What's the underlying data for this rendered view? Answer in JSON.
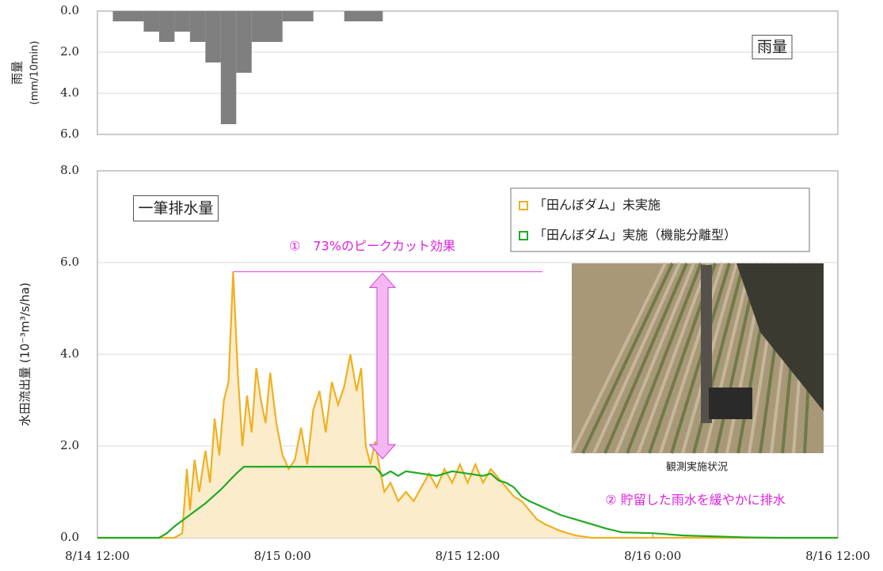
{
  "chart_data": [
    {
      "type": "histogram",
      "ylabel": [
        "雨量",
        "(mm/10min)"
      ],
      "panel_label": "雨量",
      "xlim": [
        0,
        48
      ],
      "ylim": [
        0,
        6
      ],
      "y_inverted": true,
      "yticks": [
        {
          "value": 0,
          "label": "0.0"
        },
        {
          "value": 2,
          "label": "2.0"
        },
        {
          "value": 4,
          "label": "4.0"
        },
        {
          "value": 6,
          "label": "6.0"
        }
      ],
      "grid": true,
      "color": "#7f7f7f",
      "bins": [
        1,
        3,
        4,
        5,
        6,
        7,
        8,
        9,
        10,
        12,
        14,
        16,
        18.5
      ],
      "values": [
        0.5,
        1.0,
        1.5,
        1.0,
        1.5,
        2.5,
        5.5,
        3.0,
        1.5,
        0.5,
        0,
        0.5
      ]
    },
    {
      "type": "line",
      "ylabel": "水田流出量 (10⁻³m³/s/ha)",
      "panel_label": "一筆排水量",
      "peak_cut_label": "①　73%のピークカット効果",
      "drain_label": "② 貯留した雨水を緩やかに排水",
      "photo_caption": "観測実施状況",
      "xlim": [
        0,
        48
      ],
      "ylim": [
        0,
        8
      ],
      "yticks": [
        {
          "value": 0,
          "label": "0.0"
        },
        {
          "value": 2,
          "label": "2.0"
        },
        {
          "value": 4,
          "label": "4.0"
        },
        {
          "value": 6,
          "label": "6.0"
        },
        {
          "value": 8,
          "label": "8.0"
        }
      ],
      "xticks": [
        {
          "value": 0,
          "label": "8/14 12:00"
        },
        {
          "value": 12,
          "label": "8/15 0:00"
        },
        {
          "value": 24,
          "label": "8/15 12:00"
        },
        {
          "value": 36,
          "label": "8/16 0:00"
        },
        {
          "value": 48,
          "label": "8/16 12:00"
        }
      ],
      "grid": true,
      "legend": "upper right",
      "series": [
        {
          "name": "「田んぼダム」未実施",
          "color": "#f0b020",
          "fill_color": "#fbeccb",
          "x": [
            0,
            5,
            5.5,
            5.8,
            6.0,
            6.3,
            6.6,
            7.0,
            7.3,
            7.6,
            7.9,
            8.2,
            8.5,
            8.8,
            9.1,
            9.4,
            9.7,
            10.0,
            10.3,
            10.6,
            10.9,
            11.2,
            11.6,
            12.0,
            12.4,
            12.8,
            13.2,
            13.6,
            14.0,
            14.4,
            14.8,
            15.2,
            15.6,
            16.0,
            16.4,
            16.8,
            17.1,
            17.4,
            17.7,
            18.0,
            18.3,
            18.6,
            19.0,
            19.5,
            20.0,
            20.5,
            21.0,
            21.5,
            22.0,
            22.5,
            23.0,
            23.5,
            24.0,
            24.5,
            25.0,
            25.5,
            26.0,
            26.5,
            27.0,
            27.5,
            28.0,
            28.5,
            29.0,
            30.0,
            31.0,
            32.0,
            48
          ],
          "values": [
            0,
            0,
            0.1,
            1.5,
            0.6,
            1.7,
            1.0,
            1.9,
            1.2,
            2.6,
            1.8,
            3.0,
            3.4,
            5.8,
            3.6,
            2.0,
            3.1,
            2.3,
            3.7,
            3.0,
            2.5,
            3.6,
            2.5,
            1.8,
            1.5,
            1.7,
            2.4,
            1.6,
            2.8,
            3.2,
            2.3,
            3.4,
            2.9,
            3.3,
            4.0,
            3.2,
            3.7,
            2.0,
            1.6,
            2.1,
            1.5,
            1.0,
            1.2,
            0.8,
            1.0,
            0.8,
            1.1,
            1.4,
            1.1,
            1.5,
            1.2,
            1.6,
            1.2,
            1.6,
            1.2,
            1.5,
            1.3,
            1.1,
            0.9,
            0.8,
            0.6,
            0.4,
            0.3,
            0.15,
            0.05,
            0,
            0
          ]
        },
        {
          "name": "「田んぼダム」実施（機能分離型）",
          "color": "#22aa22",
          "x": [
            0,
            4,
            4.5,
            5,
            6,
            7,
            8,
            9,
            9.5,
            18,
            18.5,
            19,
            19.5,
            20,
            21,
            22,
            23,
            24,
            25,
            25.5,
            26,
            26.5,
            27,
            27.5,
            28,
            29,
            30,
            31,
            32,
            33,
            34,
            36,
            38,
            40,
            42,
            44,
            48
          ],
          "values": [
            0,
            0,
            0.1,
            0.25,
            0.5,
            0.75,
            1.05,
            1.4,
            1.55,
            1.55,
            1.35,
            1.45,
            1.35,
            1.45,
            1.4,
            1.35,
            1.45,
            1.4,
            1.35,
            1.4,
            1.25,
            1.2,
            1.1,
            0.9,
            0.8,
            0.65,
            0.5,
            0.4,
            0.3,
            0.2,
            0.12,
            0.1,
            0.05,
            0.03,
            0.01,
            0,
            0
          ]
        }
      ]
    }
  ]
}
